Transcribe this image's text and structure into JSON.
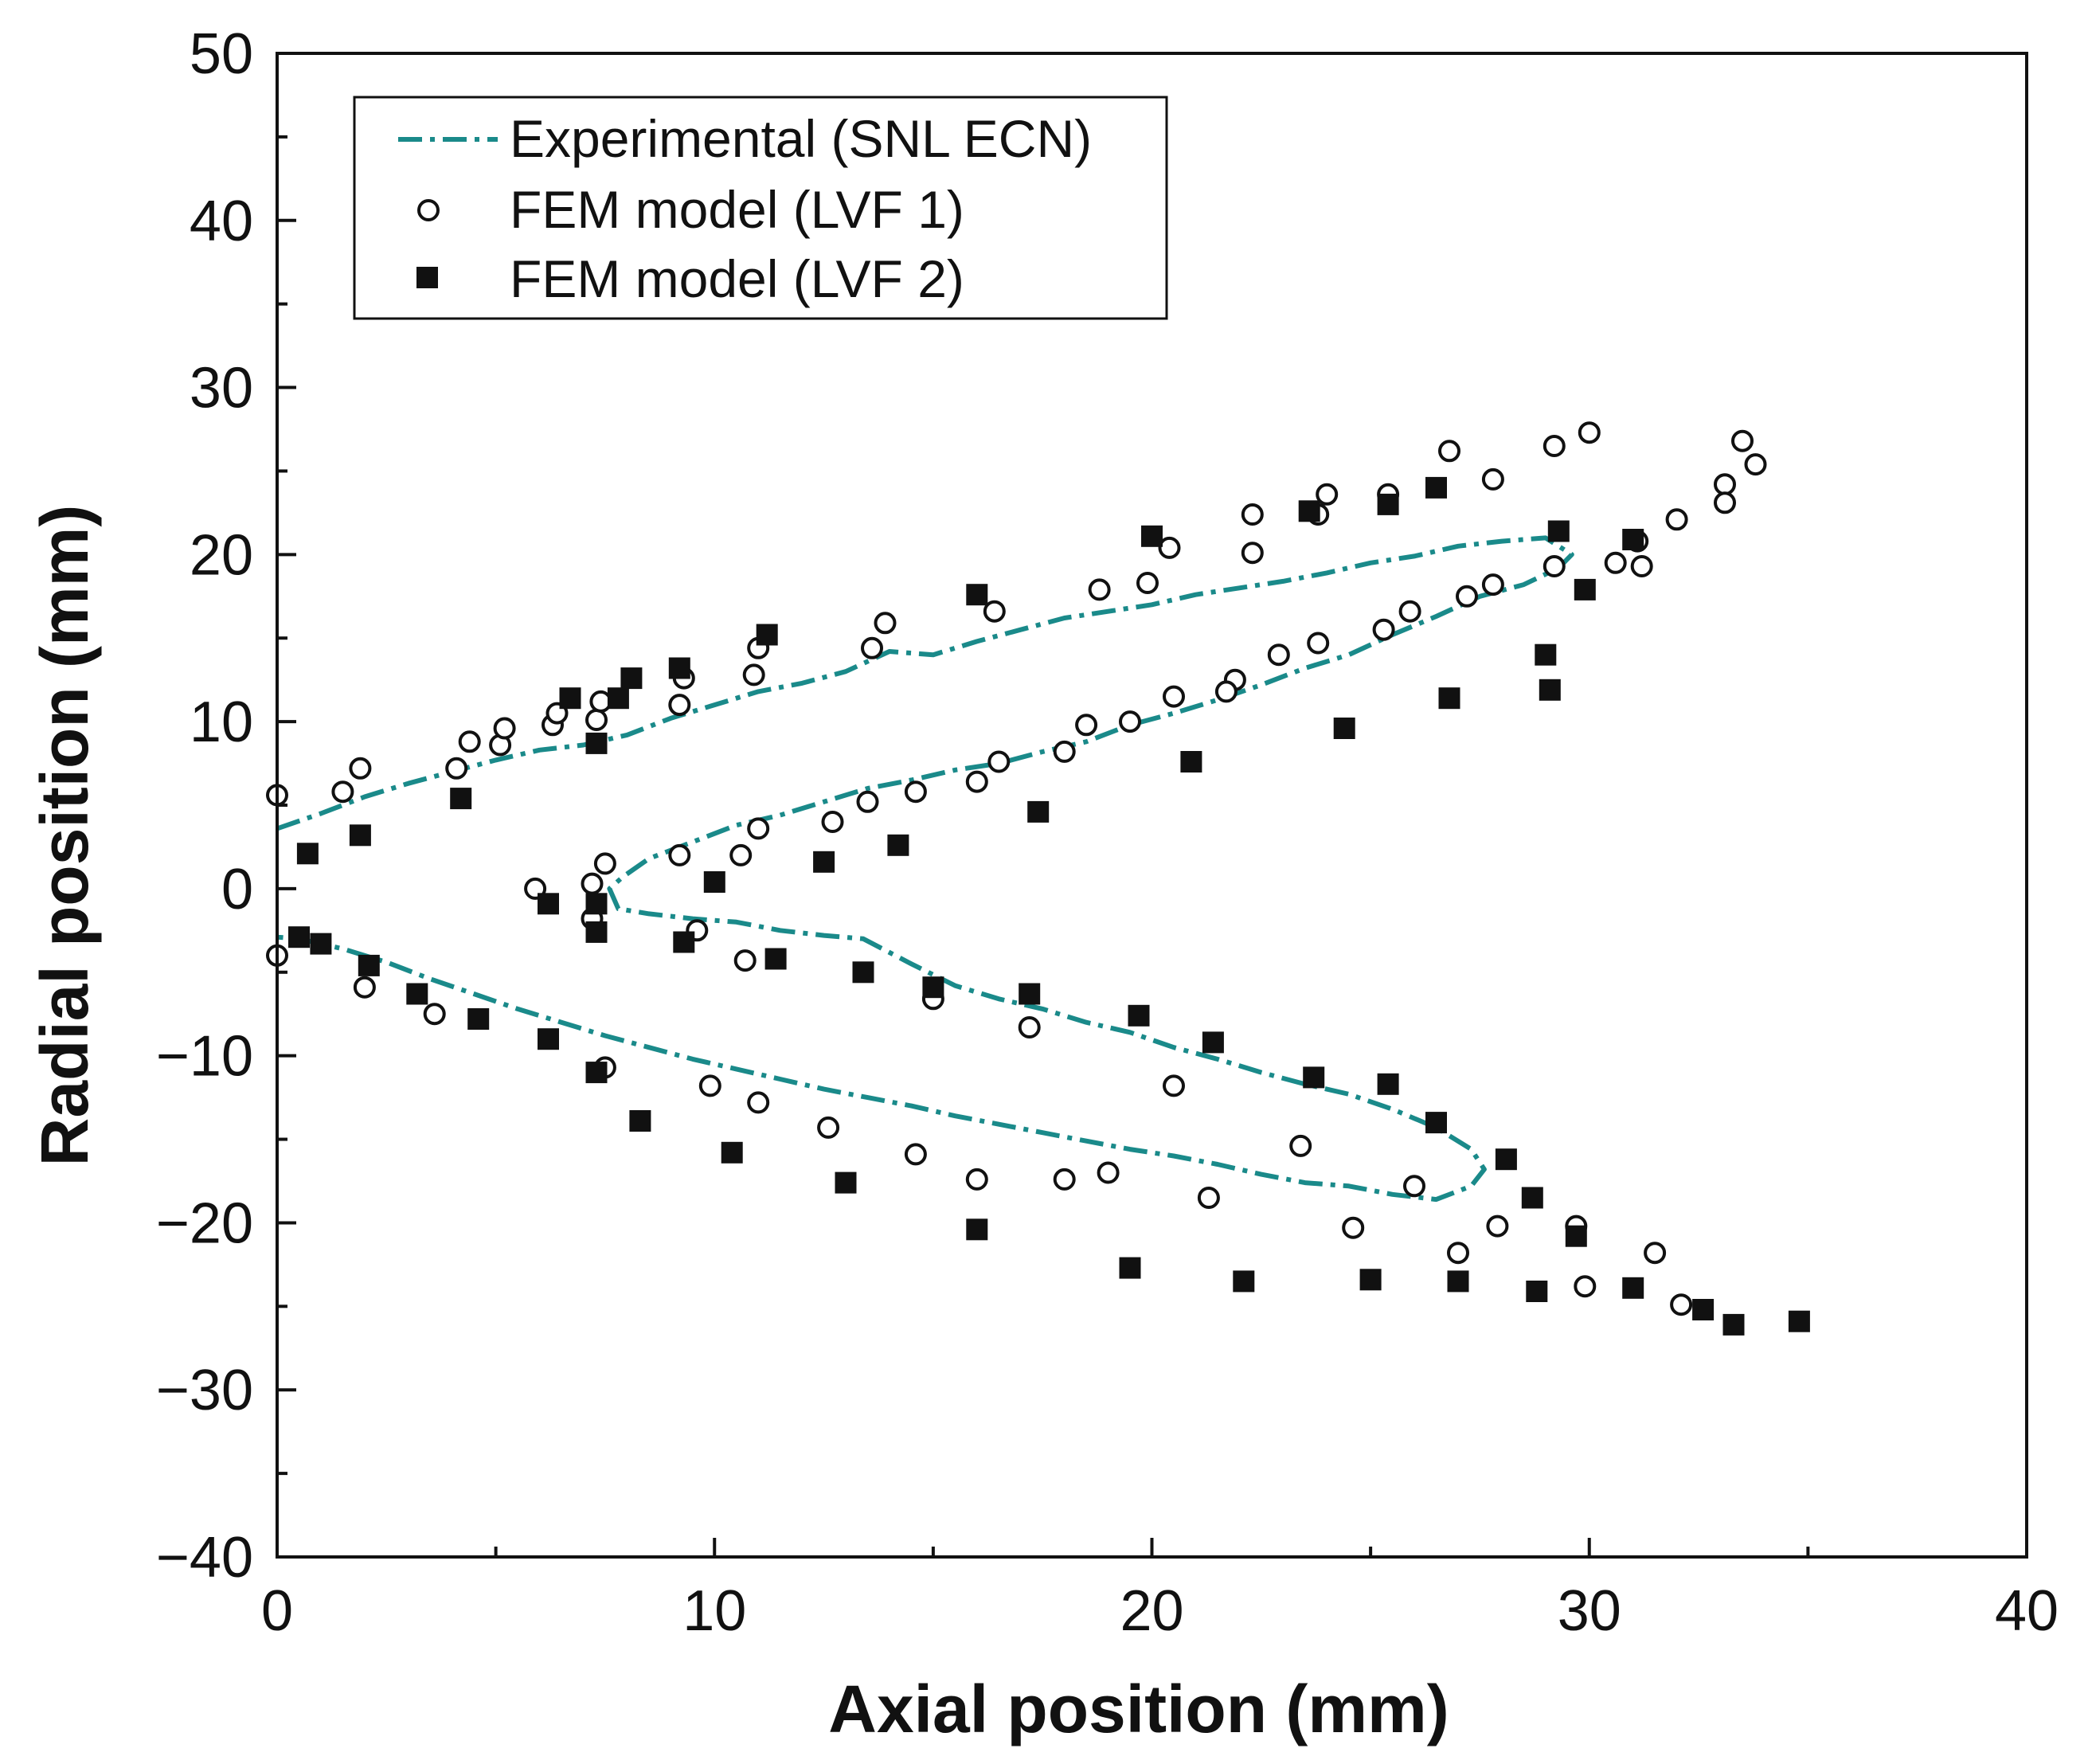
{
  "chart_data": {
    "type": "scatter",
    "xlabel": "Axial position (mm)",
    "ylabel": "Radial position (mm)",
    "xlim": [
      0,
      40
    ],
    "ylim": [
      -40,
      50
    ],
    "xticks": [
      0,
      10,
      20,
      30,
      40
    ],
    "yticks": [
      -40,
      -30,
      -20,
      -10,
      0,
      10,
      20,
      30,
      40,
      50
    ],
    "xtick_labels": [
      "0",
      "10",
      "20",
      "30",
      "40"
    ],
    "ytick_labels": [
      "−40",
      "−30",
      "−20",
      "−10",
      "0",
      "10",
      "20",
      "30",
      "40",
      "50"
    ],
    "grid": false,
    "legend_position": "top-left",
    "series": [
      {
        "name": "Experimental (SNL ECN)",
        "kind": "line",
        "style": "dash-dot",
        "color": "#1a8a8a",
        "x": [
          0,
          1,
          2,
          3,
          4,
          5,
          6,
          7,
          8,
          9,
          10,
          11,
          12,
          13,
          14,
          15,
          16,
          17,
          18,
          19,
          20,
          21,
          22,
          23,
          24,
          25,
          26,
          27,
          28,
          29,
          29.6,
          29.3,
          28.5,
          27.5,
          26.5,
          25.5,
          24.5,
          23.5,
          22.5,
          21.5,
          20.5,
          19.5,
          18.5,
          17.5,
          16.5,
          15.5,
          14.5,
          13.5,
          12.5,
          11.5,
          10.5,
          9.5,
          8.5,
          7.9,
          7.6,
          7.8,
          8.5,
          9.5,
          10.5,
          11.5,
          12.5,
          13.4,
          14.5,
          15.5,
          16.5,
          17.5,
          18.5,
          19.5,
          20.5,
          21.5,
          22.5,
          23.5,
          24.5,
          25.5,
          26.5,
          27.3,
          27.6,
          27.3,
          26.5,
          25.5,
          24.5,
          23.5,
          22.5,
          21.5,
          20.5,
          19.5,
          18.5,
          17.5,
          16.5,
          15.5,
          14.5,
          13.5,
          12.5,
          11.5,
          10.5,
          9.5,
          8.5,
          7.5,
          6.5,
          5.5,
          4.5,
          3.5,
          2.5,
          1.5,
          0.5,
          0
        ],
        "y": [
          3.6,
          4.5,
          5.5,
          6.3,
          7,
          7.7,
          8.3,
          8.6,
          9.2,
          10.2,
          11,
          11.8,
          12.3,
          13,
          14.2,
          14,
          14.8,
          15.5,
          16.2,
          16.6,
          17,
          17.6,
          18,
          18.4,
          18.9,
          19.5,
          19.9,
          20.5,
          20.8,
          21,
          20,
          19.2,
          18.2,
          17.5,
          16.3,
          15.2,
          14,
          13.2,
          12.2,
          11.3,
          10.5,
          9.8,
          8.8,
          8.2,
          7.5,
          7.1,
          6.5,
          6,
          5.2,
          4.4,
          3.8,
          2.8,
          1.8,
          0.7,
          0,
          -1.2,
          -1.5,
          -1.8,
          -2,
          -2.5,
          -2.8,
          -3,
          -4.5,
          -5.8,
          -6.6,
          -7.2,
          -8,
          -8.6,
          -9.5,
          -10.2,
          -11,
          -11.7,
          -12.3,
          -13.2,
          -14.3,
          -15.6,
          -16.8,
          -17.8,
          -18.6,
          -18.3,
          -17.8,
          -17.6,
          -17.1,
          -16.5,
          -16,
          -15.6,
          -15.1,
          -14.6,
          -14.1,
          -13.6,
          -13,
          -12.5,
          -12,
          -11.4,
          -10.8,
          -10.2,
          -9.5,
          -8.8,
          -8,
          -7.2,
          -6.3,
          -5.4,
          -4.4,
          -3.6,
          -3,
          -2.9
        ]
      },
      {
        "name": "FEM model (LVF 1)",
        "kind": "scatter",
        "marker": "open-circle",
        "x": [
          0,
          1.5,
          1.9,
          4.1,
          4.4,
          5.1,
          5.2,
          6.3,
          6.4,
          7.3,
          7.4,
          9.2,
          9.3,
          10.9,
          11,
          13.6,
          13.9,
          16.4,
          18.8,
          19.9,
          20.4,
          22.3,
          22.3,
          23.8,
          24,
          25.4,
          26.8,
          27.8,
          29.2,
          30,
          33.5,
          33.1,
          33.8,
          33.1,
          32,
          31.1,
          31.2,
          30.6,
          29.2,
          27.8,
          27.2,
          25.9,
          25.3,
          23.8,
          22.9,
          21.9,
          21.7,
          20.5,
          19.5,
          18.5,
          18,
          16.5,
          16,
          14.6,
          13.5,
          12.7,
          11,
          10.6,
          9.2,
          7.5,
          7.2,
          5.9,
          7.2,
          9.6,
          10.7,
          15,
          17.2,
          7.5,
          9.9,
          11,
          12.6,
          14.6,
          16,
          18,
          19,
          20.5,
          21.3,
          23.4,
          24.6,
          26,
          27,
          27.9,
          29.7,
          29.9,
          31.5,
          32.1,
          0,
          2,
          3.6
        ],
        "y": [
          5.6,
          5.8,
          7.2,
          7.2,
          8.8,
          8.6,
          9.6,
          9.8,
          10.5,
          10.1,
          11.2,
          11,
          12.6,
          12.8,
          14.4,
          14.4,
          15.9,
          16.6,
          17.9,
          18.3,
          20.4,
          20.1,
          22.4,
          22.4,
          23.6,
          23.6,
          26.2,
          24.5,
          26.5,
          27.3,
          26.8,
          24.2,
          25.4,
          23.1,
          22.1,
          20.8,
          19.3,
          19.5,
          19.3,
          18.2,
          17.5,
          16.6,
          15.5,
          14.7,
          14,
          12.5,
          11.8,
          11.5,
          10,
          9.8,
          8.2,
          7.6,
          6.4,
          5.8,
          5.2,
          4,
          3.6,
          2,
          2,
          1.5,
          0.3,
          0,
          -1.8,
          -2.5,
          -4.3,
          -6.6,
          -8.3,
          -10.7,
          -11.8,
          -12.8,
          -14.3,
          -15.9,
          -17.4,
          -17.4,
          -17,
          -11.8,
          -18.5,
          -15.4,
          -20.3,
          -17.8,
          -21.8,
          -20.2,
          -20.2,
          -23.8,
          -21.8,
          -24.9,
          -4,
          -5.9,
          -7.5
        ]
      },
      {
        "name": "FEM model (LVF 2)",
        "kind": "scatter",
        "marker": "filled-square",
        "x": [
          4.2,
          6.7,
          7.3,
          7.8,
          8.1,
          9.2,
          11.2,
          16,
          20,
          23.6,
          25.4,
          26.5,
          29.3,
          31,
          29.9,
          29,
          29.1,
          26.8,
          24.4,
          20.9,
          17.4,
          14.2,
          12.5,
          10,
          7.3,
          6.2,
          7.3,
          9.3,
          11.4,
          13.4,
          15,
          17.2,
          19.7,
          21.4,
          23.7,
          25.4,
          26.5,
          28.1,
          28.7,
          29.7,
          31,
          32.6,
          33.3,
          34.8,
          27,
          28.8,
          25,
          22.1,
          19.5,
          16,
          13,
          10.4,
          8.3,
          7.3,
          6.2,
          4.6,
          3.2,
          2.1,
          1,
          0.5,
          0.7,
          1.9
        ],
        "y": [
          5.4,
          11.4,
          8.7,
          11.4,
          12.6,
          13.2,
          15.2,
          17.6,
          21.1,
          22.6,
          23,
          24,
          21.4,
          20.9,
          17.9,
          14,
          11.9,
          11.4,
          9.6,
          7.6,
          4.6,
          2.6,
          1.6,
          0.4,
          -0.9,
          -0.9,
          -2.6,
          -3.2,
          -4.2,
          -5,
          -5.9,
          -6.3,
          -7.6,
          -9.2,
          -11.3,
          -11.7,
          -14,
          -16.2,
          -18.5,
          -20.8,
          -23.9,
          -25.2,
          -26.1,
          -25.9,
          -23.5,
          -24.1,
          -23.4,
          -23.5,
          -22.7,
          -20.4,
          -17.6,
          -15.8,
          -13.9,
          -11,
          -9,
          -7.8,
          -6.3,
          -4.6,
          -3.3,
          -2.9,
          2.1,
          3.2
        ]
      }
    ]
  }
}
